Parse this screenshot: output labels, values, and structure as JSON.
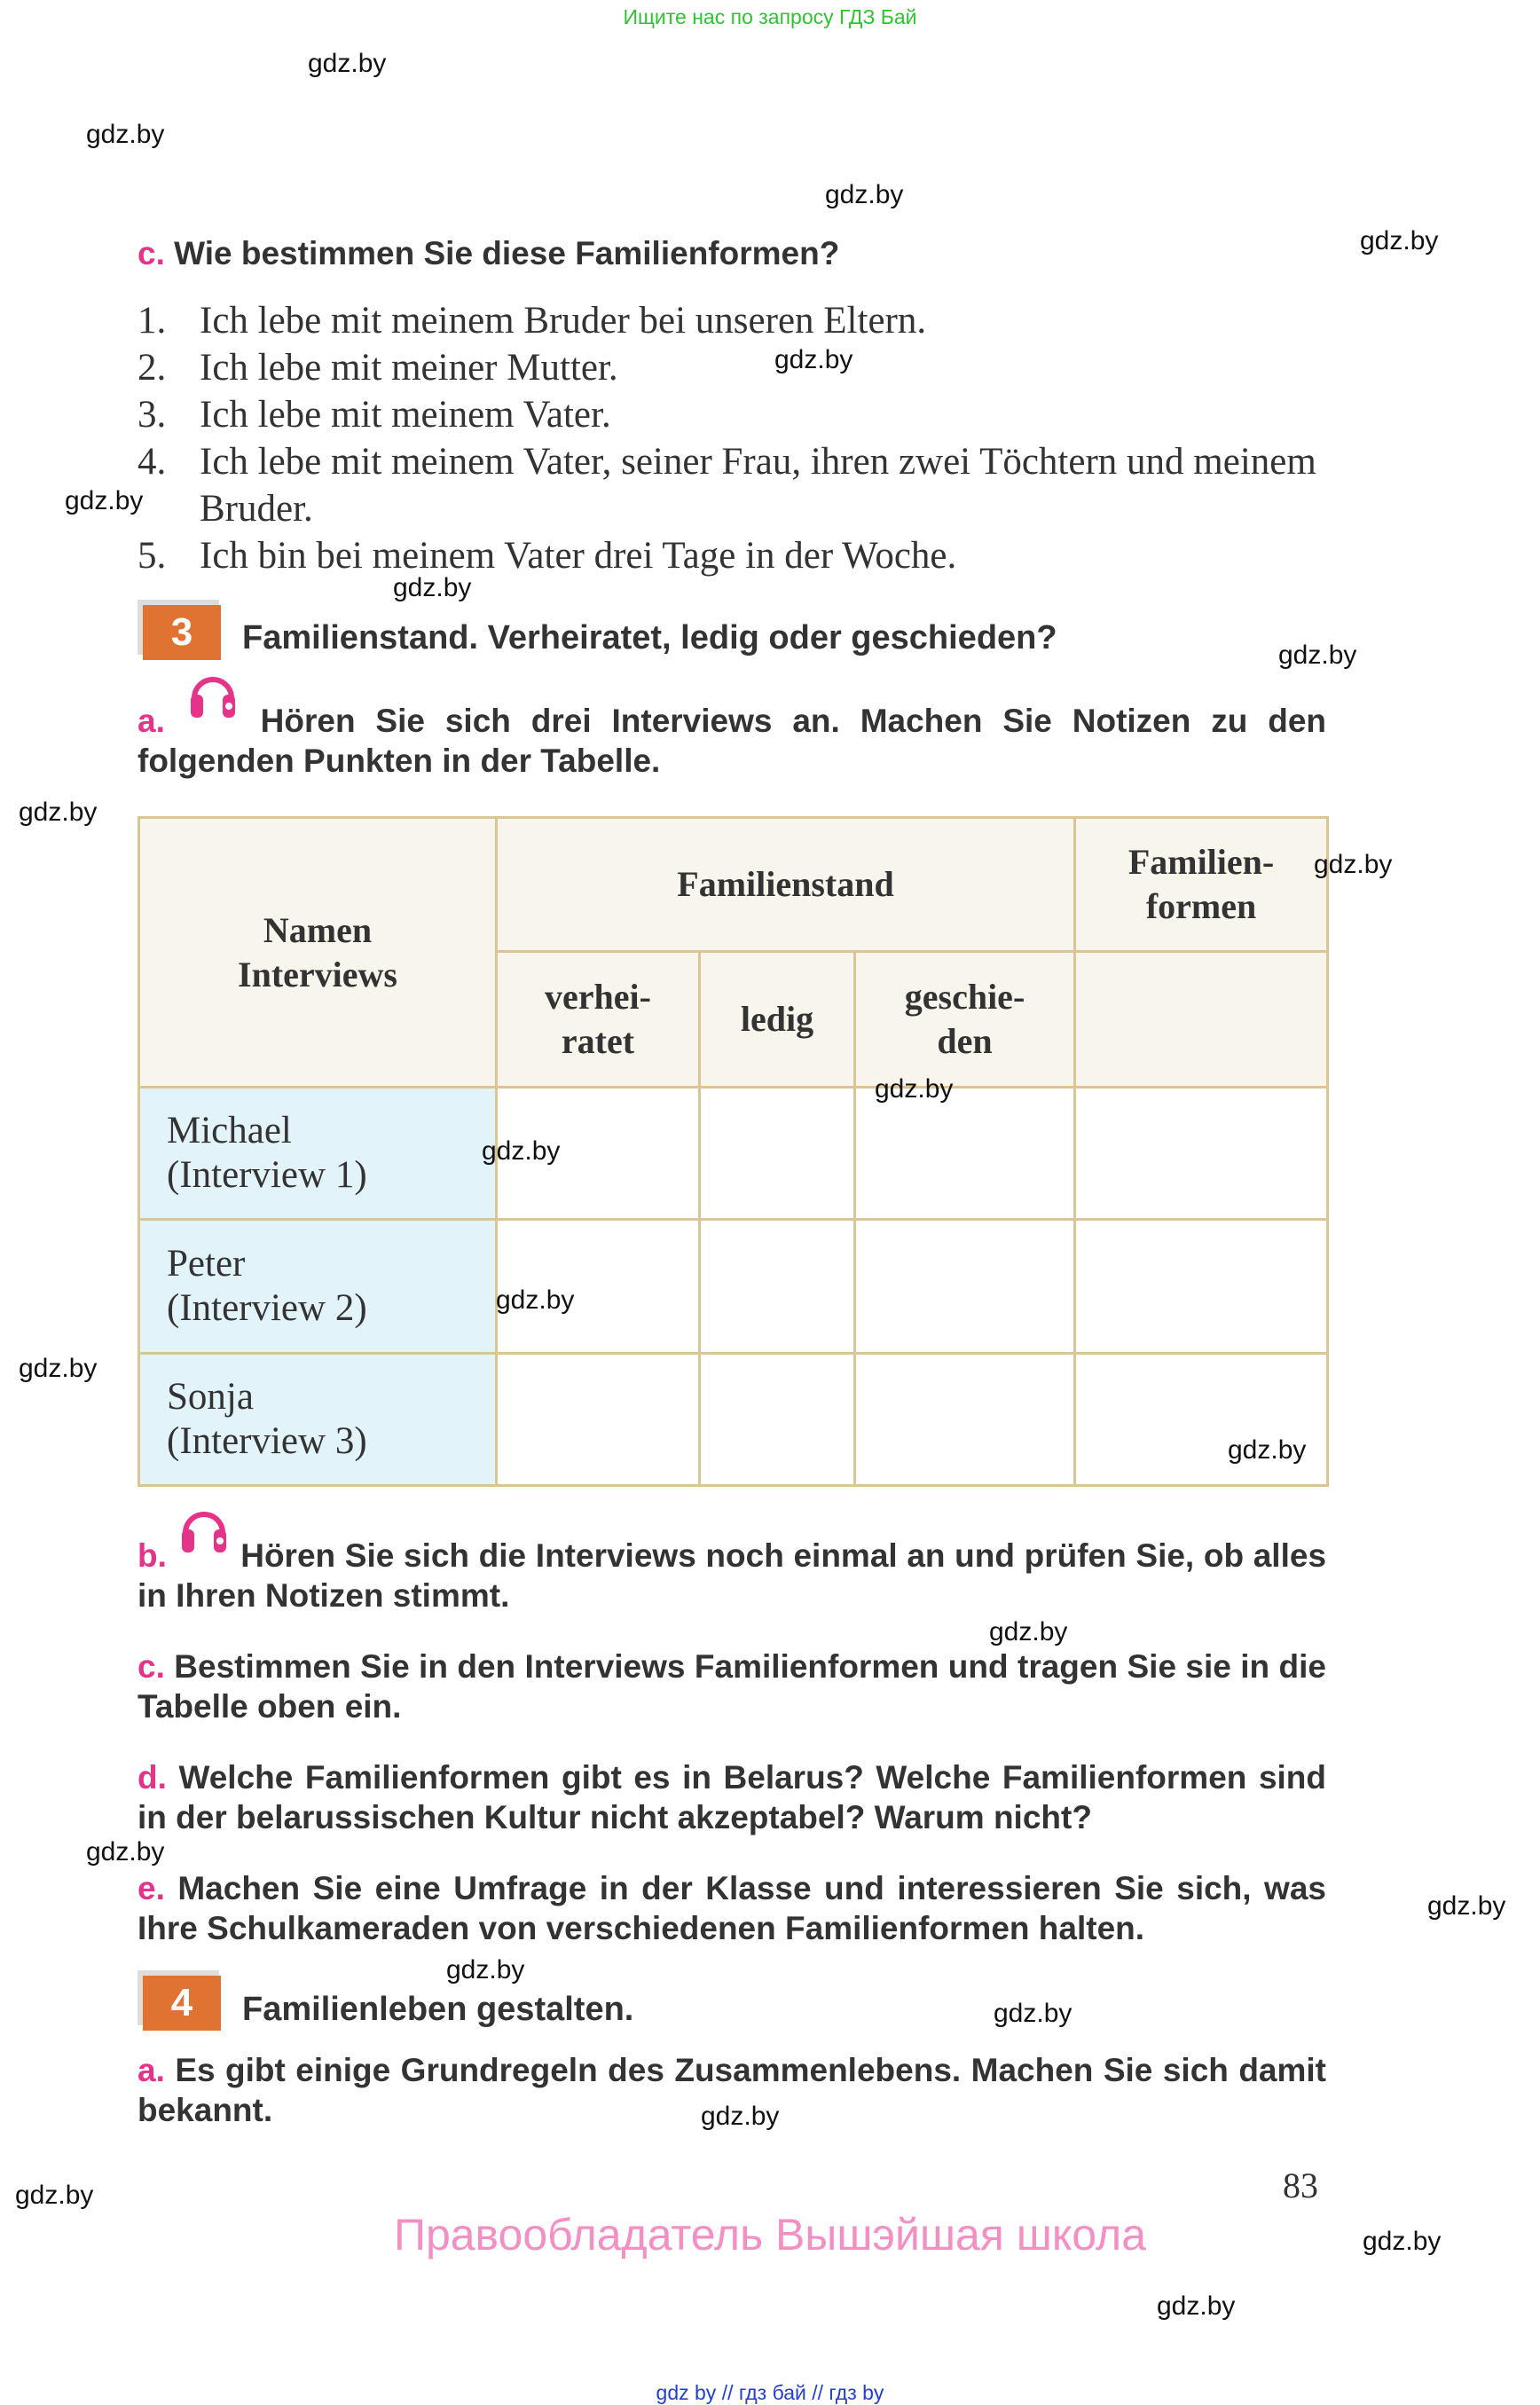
{
  "top_link": "Ищите нас по запросу ГДЗ Бай",
  "watermark": "gdz.by",
  "colors": {
    "letter": "#e6338a",
    "badge": "#e07232",
    "header_bg": "#f8f5ec",
    "name_bg": "#e3f3fa",
    "border": "#d9c596",
    "owner": "#f48fc4"
  },
  "section2c": {
    "letter": "c.",
    "text": "Wie bestimmen Sie diese Familienformen?",
    "items": [
      {
        "num": "1.",
        "text": "Ich lebe mit meinem Bruder bei unseren Eltern."
      },
      {
        "num": "2.",
        "text": "Ich lebe mit meiner Mutter."
      },
      {
        "num": "3.",
        "text": "Ich lebe mit meinem Vater."
      },
      {
        "num": "4.",
        "text": "Ich lebe mit meinem Vater, seiner Frau, ihren zwei Töchtern und meinem Bruder."
      },
      {
        "num": "5.",
        "text": "Ich bin bei meinem Vater drei Tage in der Woche."
      }
    ]
  },
  "exercise3": {
    "number": "3",
    "title": "Familienstand. Verheiratet, ledig oder geschieden?",
    "a": {
      "letter": "a.",
      "icon": "headphones-icon",
      "text": "Hören Sie sich drei Interviews an. Machen Sie Notizen zu den folgenden Punkten in der Tabelle."
    },
    "table": {
      "col_names": "Namen Interviews",
      "col_status": "Familienstand",
      "col_forms": "Familien- formen",
      "sub_married": "verhei- ratet",
      "sub_single": "ledig",
      "sub_divorced": "geschie- den",
      "rows": [
        {
          "name": "Michael",
          "interview": "(Interview 1)"
        },
        {
          "name": "Peter",
          "interview": "(Interview 2)"
        },
        {
          "name": "Sonja",
          "interview": "(Interview 3)"
        }
      ]
    },
    "b": {
      "letter": "b.",
      "icon": "headphones-icon",
      "text": "Hören Sie sich die Interviews noch einmal an und prüfen Sie, ob alles in Ihren Notizen stimmt."
    },
    "c": {
      "letter": "c.",
      "text": "Bestimmen Sie in den Interviews Familienformen und tragen Sie sie in die Tabelle oben ein."
    },
    "d": {
      "letter": "d.",
      "text": "Welche Familienformen gibt es in Belarus? Welche Familienformen sind in der belarussischen Kultur nicht akzeptabel? Warum nicht?"
    },
    "e": {
      "letter": "e.",
      "text": "Machen Sie eine Umfrage in der Klasse und interessieren Sie sich, was Ihre Schulkameraden von verschiedenen Familienformen halten."
    }
  },
  "exercise4": {
    "number": "4",
    "title": "Familienleben gestalten.",
    "a": {
      "letter": "a.",
      "text": "Es gibt einige Grundregeln des Zusammenlebens. Machen Sie sich damit bekannt."
    }
  },
  "page_number": "83",
  "owner_text": "Правообладатель Вышэйшая школа",
  "footer": "gdz by  //  гдз бай  //  гдз by"
}
